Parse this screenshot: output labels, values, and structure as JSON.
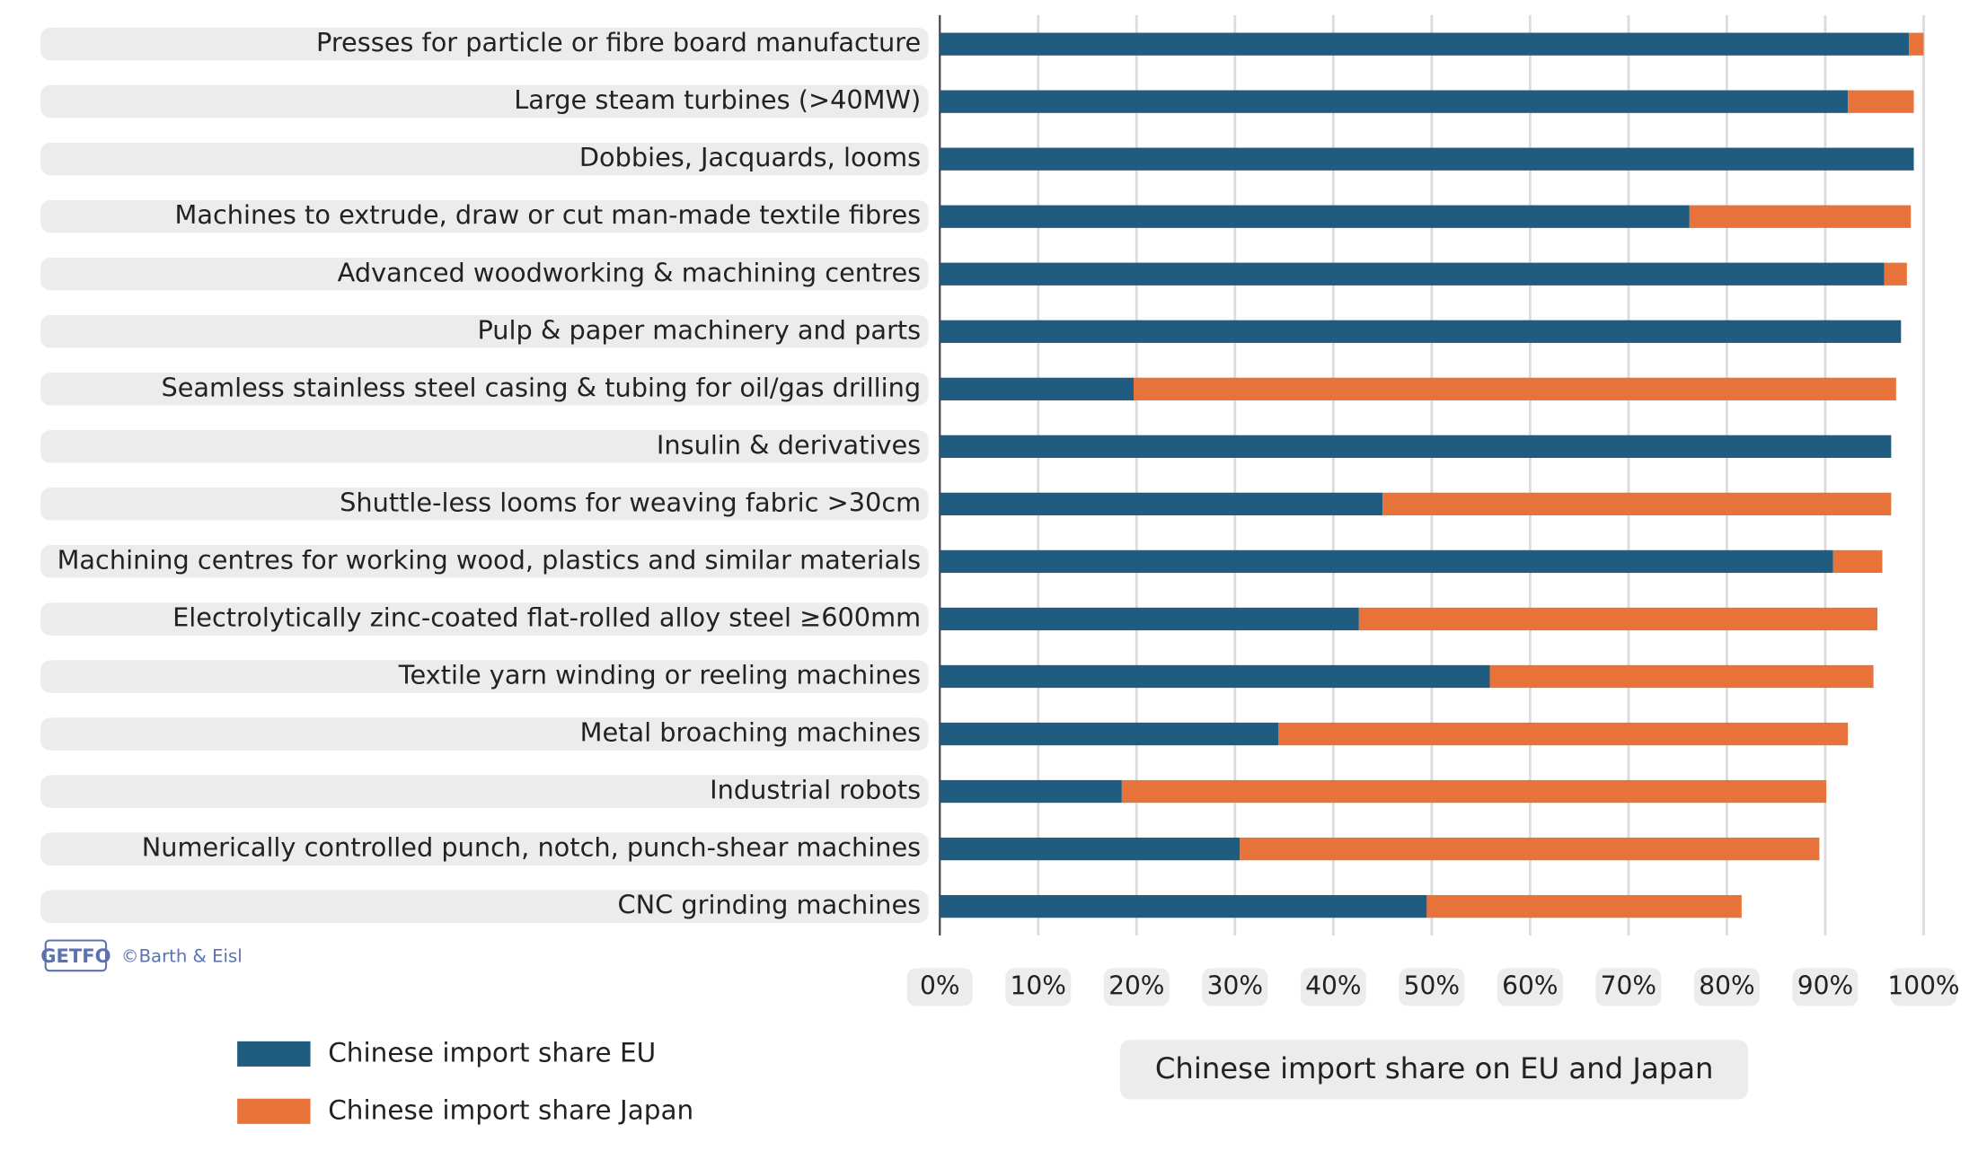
{
  "chart_data": {
    "type": "stacked-barh",
    "title": "Chinese import share on EU and Japan",
    "source": "©Barth & Eisl",
    "logo": "GETFO",
    "categories": [
      "Presses for particle or fibre board manufacture",
      "Large steam turbines (>40MW)",
      "Dobbies, Jacquards, looms",
      "Machines to extrude, draw or cut man-made textile fibres",
      "Advanced woodworking & machining centres",
      "Pulp & paper machinery and parts",
      "Seamless stainless steel casing & tubing for oil/gas drilling",
      "Insulin & derivatives",
      "Shuttle-less looms for weaving fabric >30cm",
      "Machining centres for working wood, plastics and similar materials",
      "Electrolytically zinc-coated flat-rolled alloy steel ≥600mm",
      "Textile yarn winding or reeling machines",
      "Metal broaching machines",
      "Industrial robots",
      "Numerically controlled punch, notch, punch-shear machines",
      "CNC grinding machines"
    ],
    "series": [
      {
        "name": "Chinese import share EU",
        "color": "#1f5c80",
        "values": [
          98.5,
          92.3,
          99,
          76.2,
          96,
          97.7,
          19.7,
          96.7,
          45,
          90.8,
          42.6,
          55.9,
          34.4,
          18.5,
          30.5,
          49.5
        ]
      },
      {
        "name": "Chinese import share Japan",
        "color": "#e8733a",
        "values": [
          1.5,
          6.7,
          0,
          22.5,
          2.3,
          0,
          77.5,
          0,
          51.7,
          5,
          52.7,
          39,
          57.9,
          71.6,
          58.9,
          32
        ]
      }
    ],
    "xlim": [
      0,
      100
    ],
    "xticks": [
      {
        "value": 0,
        "label": "0%"
      },
      {
        "value": 10,
        "label": "10%"
      },
      {
        "value": 20,
        "label": "20%"
      },
      {
        "value": 30,
        "label": "30%"
      },
      {
        "value": 40,
        "label": "40%"
      },
      {
        "value": 50,
        "label": "50%"
      },
      {
        "value": 60,
        "label": "60%"
      },
      {
        "value": 70,
        "label": "70%"
      },
      {
        "value": 80,
        "label": "80%"
      },
      {
        "value": 90,
        "label": "90%"
      },
      {
        "value": 100,
        "label": "100%"
      }
    ],
    "grid": true
  }
}
